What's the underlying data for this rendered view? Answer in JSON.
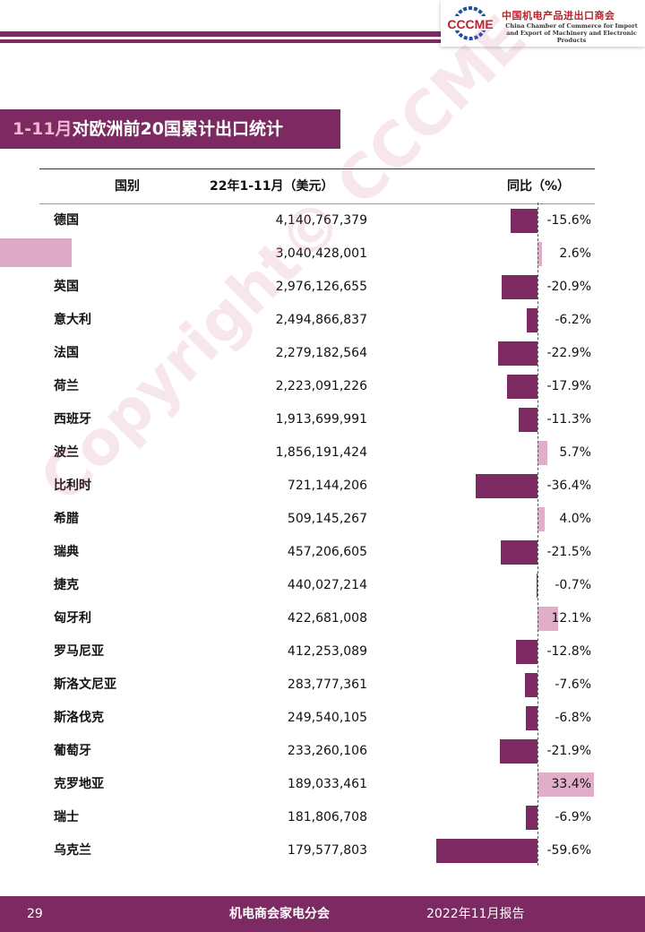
{
  "header": {
    "logo_text": "CCCME",
    "org_name_cn": "中国机电产品进出口商会",
    "org_name_en_line1": "China Chamber of Commerce for Import",
    "org_name_en_line2": "and Export of Machinery and Electronic Products"
  },
  "section": {
    "title_highlight": "1-11月",
    "title_rest": "对欧洲前20国累计出口统计"
  },
  "table": {
    "columns": [
      "国别",
      "22年1-11月（美元）",
      "同比（%）"
    ],
    "rows": [
      {
        "country": "德国",
        "value": "4,140,767,379",
        "yoy": "-15.6%",
        "yoy_num": -15.6
      },
      {
        "country": "",
        "value": "3,040,428,001",
        "yoy": "2.6%",
        "yoy_num": 2.6
      },
      {
        "country": "英国",
        "value": "2,976,126,655",
        "yoy": "-20.9%",
        "yoy_num": -20.9
      },
      {
        "country": "意大利",
        "value": "2,494,866,837",
        "yoy": "-6.2%",
        "yoy_num": -6.2
      },
      {
        "country": "法国",
        "value": "2,279,182,564",
        "yoy": "-22.9%",
        "yoy_num": -22.9
      },
      {
        "country": "荷兰",
        "value": "2,223,091,226",
        "yoy": "-17.9%",
        "yoy_num": -17.9
      },
      {
        "country": "西班牙",
        "value": "1,913,699,991",
        "yoy": "-11.3%",
        "yoy_num": -11.3
      },
      {
        "country": "波兰",
        "value": "1,856,191,424",
        "yoy": "5.7%",
        "yoy_num": 5.7
      },
      {
        "country": "比利时",
        "value": "721,144,206",
        "yoy": "-36.4%",
        "yoy_num": -36.4
      },
      {
        "country": "希腊",
        "value": "509,145,267",
        "yoy": "4.0%",
        "yoy_num": 4.0
      },
      {
        "country": "瑞典",
        "value": "457,206,605",
        "yoy": "-21.5%",
        "yoy_num": -21.5
      },
      {
        "country": "捷克",
        "value": "440,027,214",
        "yoy": "-0.7%",
        "yoy_num": -0.7
      },
      {
        "country": "匈牙利",
        "value": "422,681,008",
        "yoy": "12.1%",
        "yoy_num": 12.1
      },
      {
        "country": "罗马尼亚",
        "value": "412,253,089",
        "yoy": "-12.8%",
        "yoy_num": -12.8
      },
      {
        "country": "斯洛文尼亚",
        "value": "283,777,361",
        "yoy": "-7.6%",
        "yoy_num": -7.6
      },
      {
        "country": "斯洛伐克",
        "value": "249,540,105",
        "yoy": "-6.8%",
        "yoy_num": -6.8
      },
      {
        "country": "葡萄牙",
        "value": "233,260,106",
        "yoy": "-21.9%",
        "yoy_num": -21.9
      },
      {
        "country": "克罗地亚",
        "value": "189,033,461",
        "yoy": "33.4%",
        "yoy_num": 33.4
      },
      {
        "country": "瑞士",
        "value": "181,806,708",
        "yoy": "-6.9%",
        "yoy_num": -6.9
      },
      {
        "country": "乌克兰",
        "value": "179,577,803",
        "yoy": "-59.6%",
        "yoy_num": -59.6
      }
    ]
  },
  "watermark": "Copyright© CCCME",
  "footer": {
    "page_number": "29",
    "center_text": "机电商会家电分会",
    "right_text": "2022年11月报告"
  },
  "colors": {
    "brand": "#7d2a62",
    "negative_bar": "#7d2a62",
    "positive_bar": "#e1aec9"
  }
}
